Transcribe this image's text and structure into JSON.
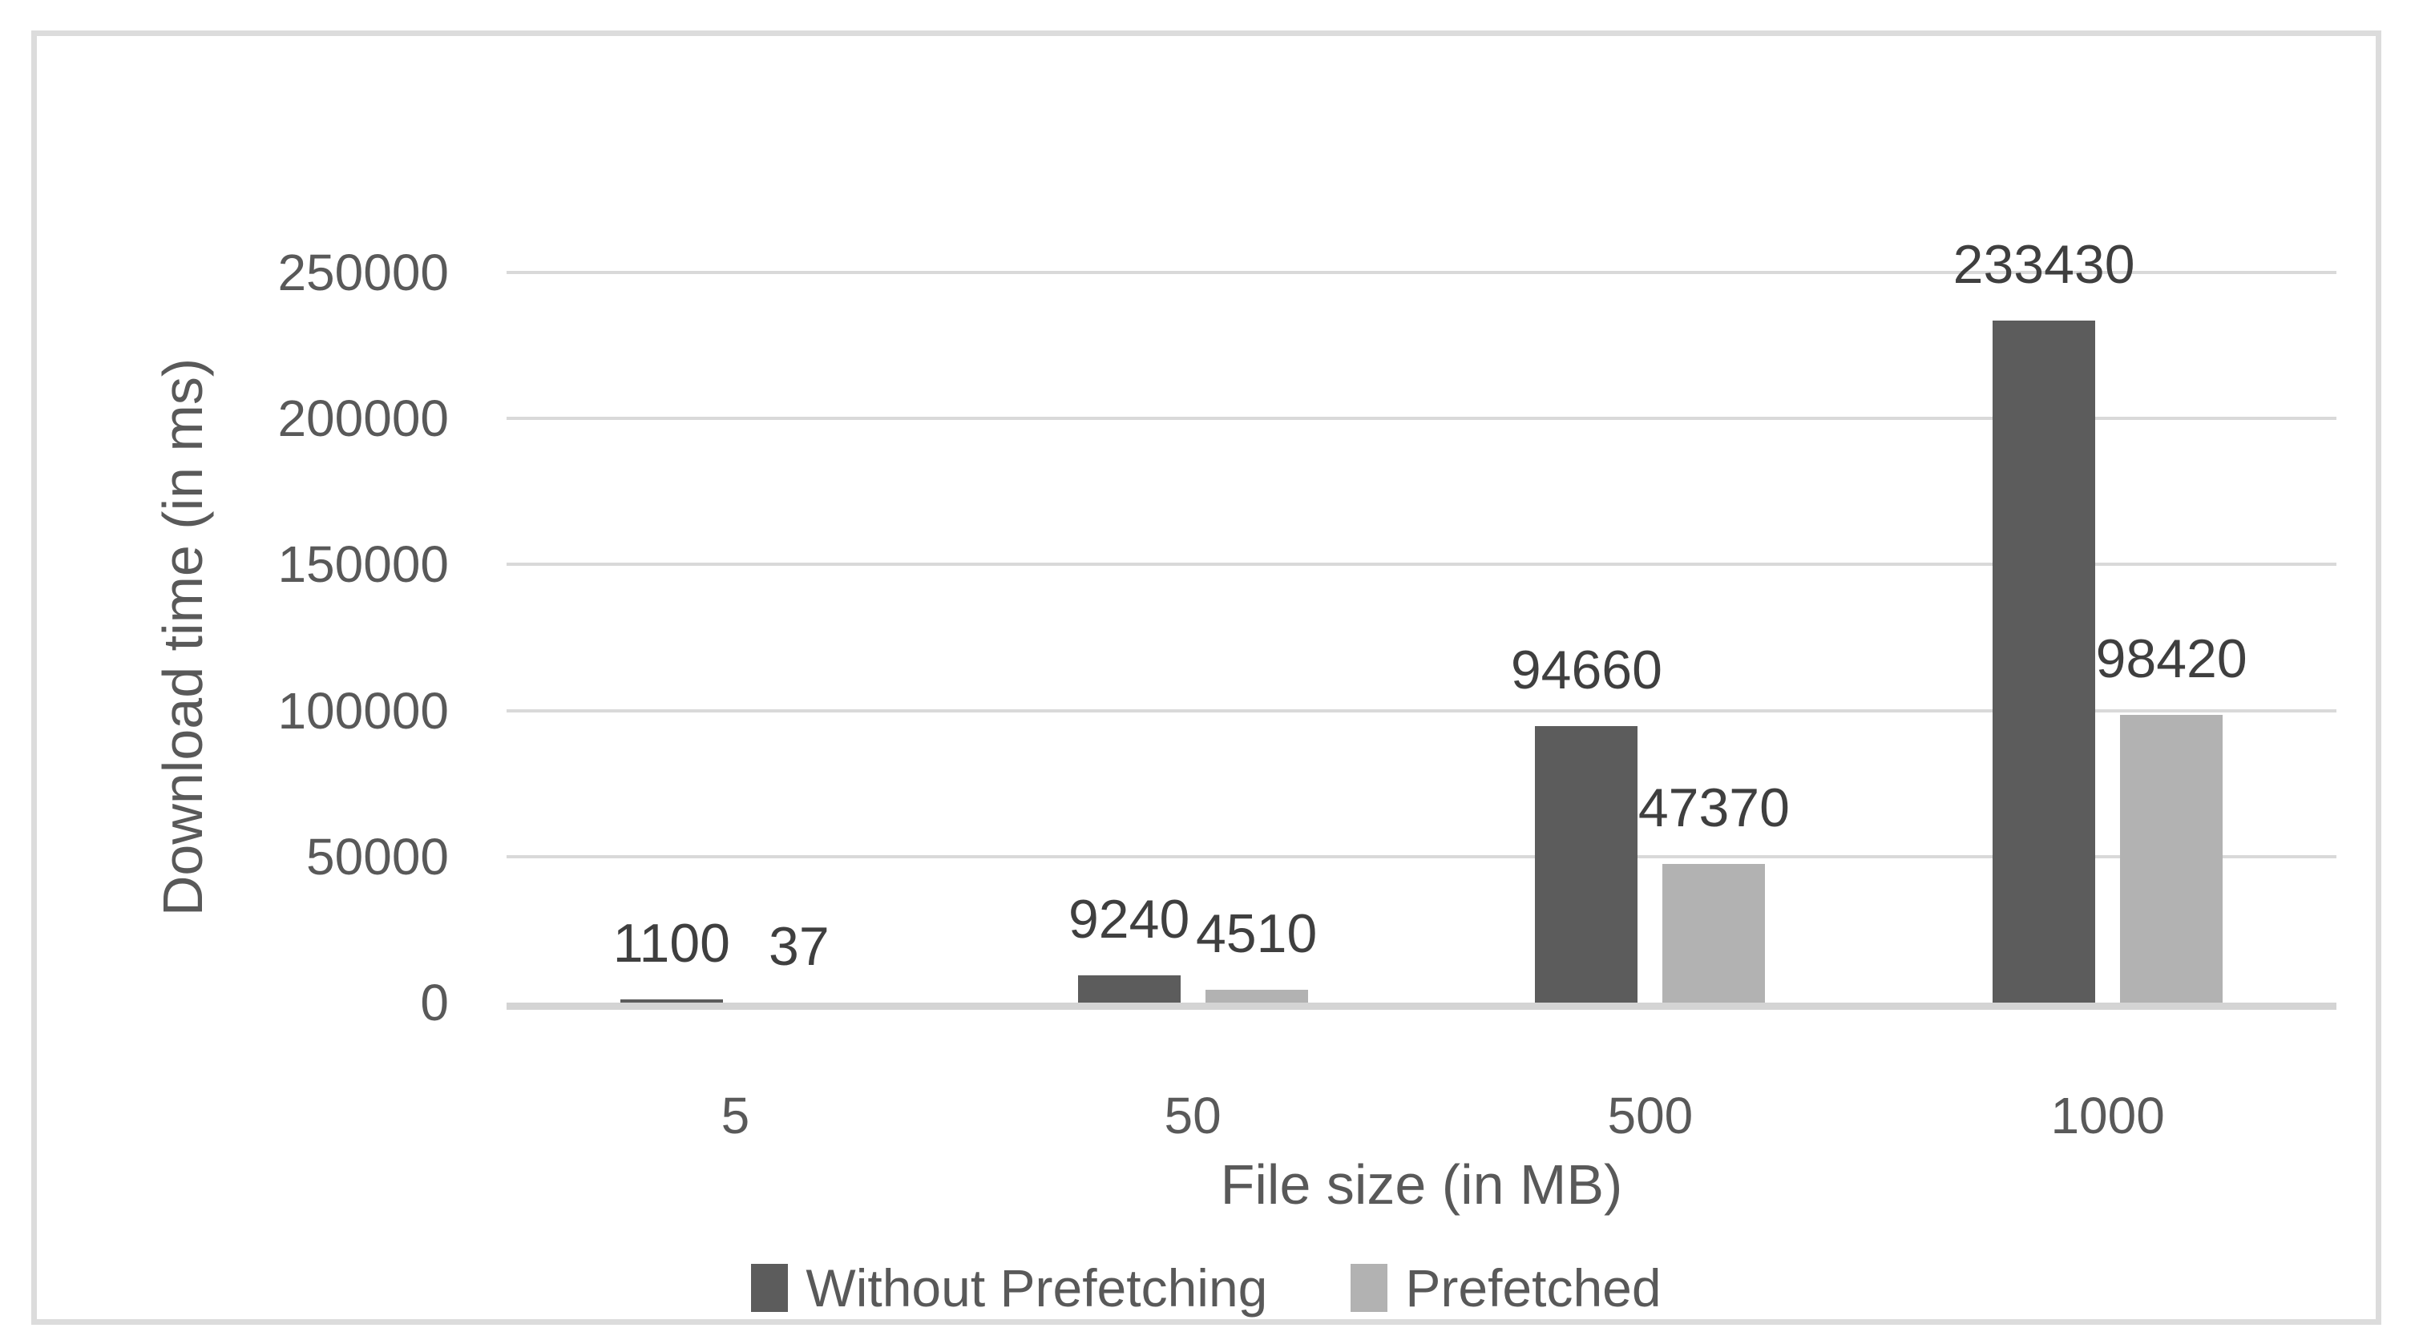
{
  "chart_data": {
    "type": "bar",
    "title": "",
    "categories": [
      "5",
      "50",
      "500",
      "1000"
    ],
    "series": [
      {
        "name": "Without Prefetching",
        "color": "#5c5c5c",
        "values": [
          1100,
          9240,
          94660,
          233430
        ]
      },
      {
        "name": "Prefetched",
        "color": "#b2b2b2",
        "values": [
          37,
          4510,
          47370,
          98420
        ]
      }
    ],
    "data_labels": [
      [
        "1100",
        "9240",
        "94660",
        "233430"
      ],
      [
        "37",
        "4510",
        "47370",
        "98420"
      ]
    ],
    "xlabel": "File size (in MB)",
    "ylabel": "Download time (in ms)",
    "ylim": [
      0,
      250000
    ],
    "ytick_step": 50000,
    "yticks": [
      "0",
      "50000",
      "100000",
      "150000",
      "200000",
      "250000"
    ],
    "grid": true,
    "legend_position": "bottom",
    "bar_label_position": "outside-end"
  },
  "colors": {
    "frame_border": "#dcdcdc",
    "gridline": "#d9d9d9",
    "axis_line": "#d4d4d4",
    "tick_text": "#595959",
    "data_label_text": "#3f3f3f",
    "series1": "#5c5c5c",
    "series2": "#b2b2b2",
    "background": "#ffffff"
  }
}
